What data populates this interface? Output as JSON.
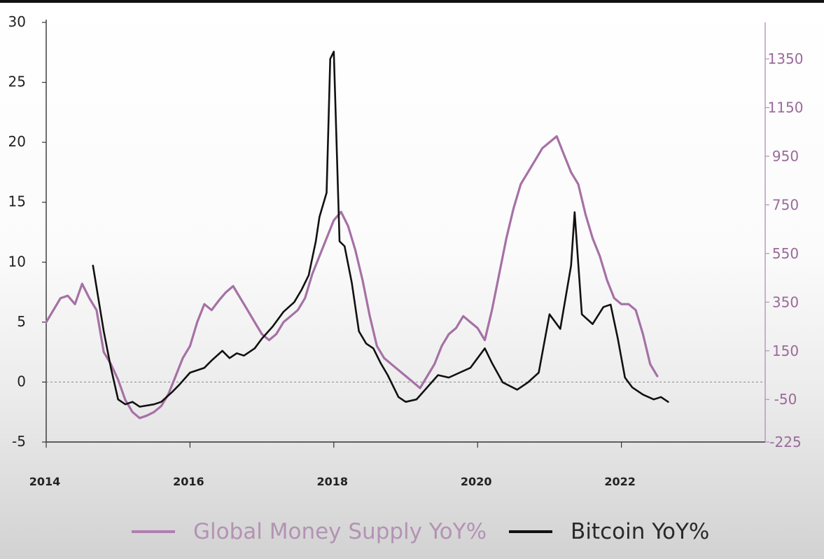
{
  "chart_data": {
    "type": "line",
    "left_axis": {
      "ylim": [
        -5,
        30
      ],
      "ticks": [
        "-5",
        "0",
        "5",
        "10",
        "15",
        "20",
        "25",
        "30"
      ]
    },
    "right_axis": {
      "ylim": [
        -225,
        1500
      ],
      "ticks": [
        "-225",
        "-50",
        "150",
        "350",
        "550",
        "750",
        "950",
        "1150",
        "1350"
      ]
    },
    "x_axis": {
      "xlim": [
        2014,
        2024
      ],
      "ticks": [
        "2014",
        "2016",
        "2018",
        "2020",
        "2022"
      ]
    },
    "grid": false,
    "zero_reference_line": true,
    "legend": {
      "placement": "bottom"
    },
    "series": [
      {
        "name": "Global Money Supply YoY%",
        "axis": "left",
        "color": "#a571a5",
        "x": [
          2014.0,
          2014.1,
          2014.2,
          2014.3,
          2014.4,
          2014.5,
          2014.6,
          2014.7,
          2014.8,
          2014.9,
          2015.0,
          2015.1,
          2015.2,
          2015.3,
          2015.4,
          2015.5,
          2015.6,
          2015.7,
          2015.8,
          2015.9,
          2016.0,
          2016.1,
          2016.2,
          2016.3,
          2016.4,
          2016.5,
          2016.6,
          2016.7,
          2016.8,
          2016.9,
          2017.0,
          2017.1,
          2017.2,
          2017.3,
          2017.4,
          2017.5,
          2017.6,
          2017.7,
          2017.8,
          2017.9,
          2018.0,
          2018.1,
          2018.2,
          2018.3,
          2018.4,
          2018.5,
          2018.6,
          2018.7,
          2018.8,
          2018.9,
          2019.0,
          2019.1,
          2019.2,
          2019.3,
          2019.4,
          2019.5,
          2019.6,
          2019.7,
          2019.8,
          2019.9,
          2020.0,
          2020.1,
          2020.2,
          2020.3,
          2020.4,
          2020.5,
          2020.6,
          2020.7,
          2020.8,
          2020.9,
          2021.0,
          2021.1,
          2021.2,
          2021.3,
          2021.4,
          2021.5,
          2021.6,
          2021.7,
          2021.8,
          2021.9,
          2022.0,
          2022.1,
          2022.2,
          2022.3,
          2022.4,
          2022.5
        ],
        "values": [
          5.0,
          6.0,
          7.0,
          7.2,
          6.5,
          8.2,
          7.0,
          6.0,
          2.5,
          1.5,
          0.2,
          -1.5,
          -2.5,
          -3.0,
          -2.8,
          -2.5,
          -2.0,
          -1.0,
          0.5,
          2.0,
          3.0,
          5.0,
          6.5,
          6.0,
          6.8,
          7.5,
          8.0,
          7.0,
          6.0,
          5.0,
          4.0,
          3.5,
          4.0,
          5.0,
          5.5,
          6.0,
          7.0,
          9.0,
          10.5,
          12.0,
          13.5,
          14.2,
          13.0,
          11.0,
          8.5,
          5.5,
          3.0,
          2.0,
          1.5,
          1.0,
          0.5,
          0.0,
          -0.5,
          0.5,
          1.5,
          3.0,
          4.0,
          4.5,
          5.5,
          5.0,
          4.5,
          3.5,
          6.0,
          9.0,
          12.0,
          14.5,
          16.5,
          17.5,
          18.5,
          19.5,
          20.0,
          20.5,
          19.0,
          17.5,
          16.5,
          14.0,
          12.0,
          10.5,
          8.5,
          7.0,
          6.5,
          6.5,
          6.0,
          4.0,
          1.5,
          0.5
        ]
      },
      {
        "name": "Bitcoin YoY%",
        "axis": "right",
        "color": "#111111",
        "x": [
          2014.65,
          2014.8,
          2014.9,
          2015.0,
          2015.1,
          2015.2,
          2015.3,
          2015.5,
          2015.6,
          2015.75,
          2015.85,
          2016.0,
          2016.2,
          2016.3,
          2016.45,
          2016.55,
          2016.65,
          2016.75,
          2016.9,
          2017.0,
          2017.15,
          2017.3,
          2017.45,
          2017.55,
          2017.65,
          2017.75,
          2017.8,
          2017.9,
          2017.95,
          2018.0,
          2018.08,
          2018.15,
          2018.25,
          2018.35,
          2018.45,
          2018.55,
          2018.65,
          2018.75,
          2018.9,
          2019.0,
          2019.15,
          2019.3,
          2019.45,
          2019.6,
          2019.75,
          2019.9,
          2020.0,
          2020.1,
          2020.2,
          2020.35,
          2020.55,
          2020.7,
          2020.85,
          2021.0,
          2021.15,
          2021.3,
          2021.35,
          2021.45,
          2021.6,
          2021.75,
          2021.85,
          2021.95,
          2022.05,
          2022.15,
          2022.3,
          2022.45,
          2022.55,
          2022.65
        ],
        "values": [
          500,
          230,
          80,
          -50,
          -70,
          -60,
          -80,
          -70,
          -60,
          -20,
          10,
          60,
          80,
          110,
          150,
          120,
          140,
          130,
          160,
          200,
          250,
          310,
          350,
          400,
          460,
          600,
          700,
          800,
          1350,
          1380,
          600,
          580,
          430,
          230,
          180,
          160,
          100,
          50,
          -40,
          -60,
          -50,
          0,
          50,
          40,
          60,
          80,
          120,
          160,
          100,
          20,
          -10,
          20,
          60,
          300,
          240,
          500,
          720,
          300,
          260,
          330,
          340,
          200,
          40,
          0,
          -30,
          -50,
          -40,
          -60
        ]
      }
    ]
  },
  "legend": {
    "gms_label": "Global Money Supply YoY%",
    "btc_label": "Bitcoin YoY%"
  }
}
